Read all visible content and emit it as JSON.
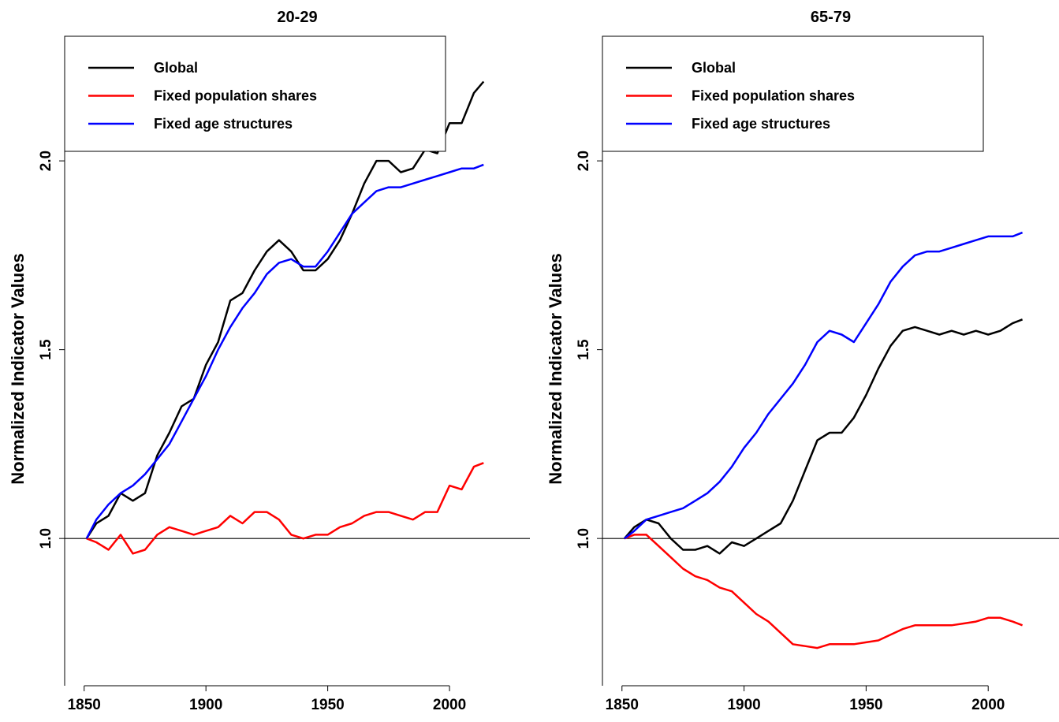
{
  "chart_data": [
    {
      "type": "line",
      "title": "20-29",
      "ylabel": "Normalized Indicator Values",
      "x": [
        1851,
        1855,
        1860,
        1865,
        1870,
        1875,
        1880,
        1885,
        1890,
        1895,
        1900,
        1905,
        1910,
        1915,
        1920,
        1925,
        1930,
        1935,
        1940,
        1945,
        1950,
        1955,
        1960,
        1965,
        1970,
        1975,
        1980,
        1985,
        1990,
        1995,
        2000,
        2005,
        2010,
        2014
      ],
      "xlim": [
        1842,
        2033
      ],
      "xticks": [
        1850,
        1900,
        1950,
        2000
      ],
      "ylim": [
        0.61,
        2.33
      ],
      "yticks": [
        {
          "value": 1,
          "label": "1.0"
        },
        1.5,
        {
          "value": 2,
          "label": "2.0"
        }
      ],
      "reference_line": 1,
      "legend": "topleft",
      "series": [
        {
          "name": "Global",
          "color": "#000000",
          "values": [
            1.0,
            1.04,
            1.06,
            1.12,
            1.1,
            1.12,
            1.22,
            1.28,
            1.35,
            1.37,
            1.46,
            1.52,
            1.63,
            1.65,
            1.71,
            1.76,
            1.79,
            1.76,
            1.71,
            1.71,
            1.74,
            1.79,
            1.86,
            1.94,
            2.0,
            2.0,
            1.97,
            1.98,
            2.03,
            2.02,
            2.1,
            2.1,
            2.18,
            2.21
          ]
        },
        {
          "name": "Fixed population shares",
          "color": "#ff0000",
          "values": [
            1.0,
            0.99,
            0.97,
            1.01,
            0.96,
            0.97,
            1.01,
            1.03,
            1.02,
            1.01,
            1.02,
            1.03,
            1.06,
            1.04,
            1.07,
            1.07,
            1.05,
            1.01,
            1.0,
            1.01,
            1.01,
            1.03,
            1.04,
            1.06,
            1.07,
            1.07,
            1.06,
            1.05,
            1.07,
            1.07,
            1.14,
            1.13,
            1.19,
            1.2
          ]
        },
        {
          "name": "Fixed age structures",
          "color": "#0000ff",
          "values": [
            1.0,
            1.05,
            1.09,
            1.12,
            1.14,
            1.17,
            1.21,
            1.25,
            1.31,
            1.37,
            1.43,
            1.5,
            1.56,
            1.61,
            1.65,
            1.7,
            1.73,
            1.74,
            1.72,
            1.72,
            1.76,
            1.81,
            1.86,
            1.89,
            1.92,
            1.93,
            1.93,
            1.94,
            1.95,
            1.96,
            1.97,
            1.98,
            1.98,
            1.99
          ]
        }
      ]
    },
    {
      "type": "line",
      "title": "65-79",
      "ylabel": "Normalized Indicator Values",
      "x": [
        1851,
        1855,
        1860,
        1865,
        1870,
        1875,
        1880,
        1885,
        1890,
        1895,
        1900,
        1905,
        1910,
        1915,
        1920,
        1925,
        1930,
        1935,
        1940,
        1945,
        1950,
        1955,
        1960,
        1965,
        1970,
        1975,
        1980,
        1985,
        1990,
        1995,
        2000,
        2005,
        2010,
        2014
      ],
      "xlim": [
        1842,
        2029
      ],
      "xticks": [
        1850,
        1900,
        1950,
        2000
      ],
      "ylim": [
        0.61,
        2.33
      ],
      "yticks": [
        {
          "value": 1,
          "label": "1.0"
        },
        1.5,
        {
          "value": 2,
          "label": "2.0"
        }
      ],
      "reference_line": 1,
      "legend": "topleft",
      "series": [
        {
          "name": "Global",
          "color": "#000000",
          "values": [
            1.0,
            1.03,
            1.05,
            1.04,
            1.0,
            0.97,
            0.97,
            0.98,
            0.96,
            0.99,
            0.98,
            1.0,
            1.02,
            1.04,
            1.1,
            1.18,
            1.26,
            1.28,
            1.28,
            1.32,
            1.38,
            1.45,
            1.51,
            1.55,
            1.56,
            1.55,
            1.54,
            1.55,
            1.54,
            1.55,
            1.54,
            1.55,
            1.57,
            1.58
          ]
        },
        {
          "name": "Fixed population shares",
          "color": "#ff0000",
          "values": [
            1.0,
            1.01,
            1.01,
            0.98,
            0.95,
            0.92,
            0.9,
            0.89,
            0.87,
            0.86,
            0.83,
            0.8,
            0.78,
            0.75,
            0.72,
            0.715,
            0.71,
            0.72,
            0.72,
            0.72,
            0.725,
            0.73,
            0.745,
            0.76,
            0.77,
            0.77,
            0.77,
            0.77,
            0.775,
            0.78,
            0.79,
            0.79,
            0.78,
            0.77
          ]
        },
        {
          "name": "Fixed age structures",
          "color": "#0000ff",
          "values": [
            1.0,
            1.02,
            1.05,
            1.06,
            1.07,
            1.08,
            1.1,
            1.12,
            1.15,
            1.19,
            1.24,
            1.28,
            1.33,
            1.37,
            1.41,
            1.46,
            1.52,
            1.55,
            1.54,
            1.52,
            1.57,
            1.62,
            1.68,
            1.72,
            1.75,
            1.76,
            1.76,
            1.77,
            1.78,
            1.79,
            1.8,
            1.8,
            1.8,
            1.81
          ]
        }
      ]
    }
  ]
}
